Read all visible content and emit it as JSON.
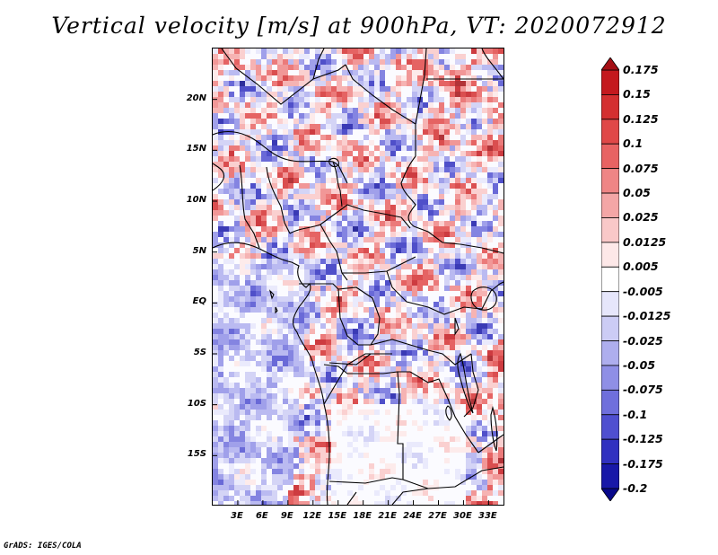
{
  "title": "Vertical velocity [m/s] at 900hPa, VT: 2020072912",
  "footer": "GrADS: IGES/COLA",
  "map": {
    "lon_range": [
      0,
      35
    ],
    "lat_range": [
      -20,
      25
    ],
    "lat_ticks": [
      {
        "value": 20,
        "label": "20N"
      },
      {
        "value": 15,
        "label": "15N"
      },
      {
        "value": 10,
        "label": "10N"
      },
      {
        "value": 5,
        "label": "5N"
      },
      {
        "value": 0,
        "label": "EQ"
      },
      {
        "value": -5,
        "label": "5S"
      },
      {
        "value": -10,
        "label": "10S"
      },
      {
        "value": -15,
        "label": "15S"
      }
    ],
    "lon_ticks": [
      {
        "value": 3,
        "label": "3E"
      },
      {
        "value": 6,
        "label": "6E"
      },
      {
        "value": 9,
        "label": "9E"
      },
      {
        "value": 12,
        "label": "12E"
      },
      {
        "value": 15,
        "label": "15E"
      },
      {
        "value": 18,
        "label": "18E"
      },
      {
        "value": 21,
        "label": "21E"
      },
      {
        "value": 24,
        "label": "24E"
      },
      {
        "value": 27,
        "label": "27E"
      },
      {
        "value": 30,
        "label": "30E"
      },
      {
        "value": 33,
        "label": "33E"
      }
    ]
  },
  "colorbar": {
    "labels": [
      "0.175",
      "0.15",
      "0.125",
      "0.1",
      "0.075",
      "0.05",
      "0.025",
      "0.0125",
      "0.005",
      "-0.005",
      "-0.0125",
      "-0.025",
      "-0.05",
      "-0.075",
      "-0.1",
      "-0.125",
      "-0.175",
      "-0.2"
    ],
    "colors": [
      "#a50f15",
      "#c4191e",
      "#d42f30",
      "#e04848",
      "#e86363",
      "#ef8585",
      "#f4a6a6",
      "#f9c8c8",
      "#fde8e8",
      "#ffffff",
      "#e6e6fb",
      "#ccccf5",
      "#aeaeee",
      "#8f8fe6",
      "#6f6fdc",
      "#4f4fd0",
      "#3030c0",
      "#1818a8",
      "#08088a"
    ]
  }
}
